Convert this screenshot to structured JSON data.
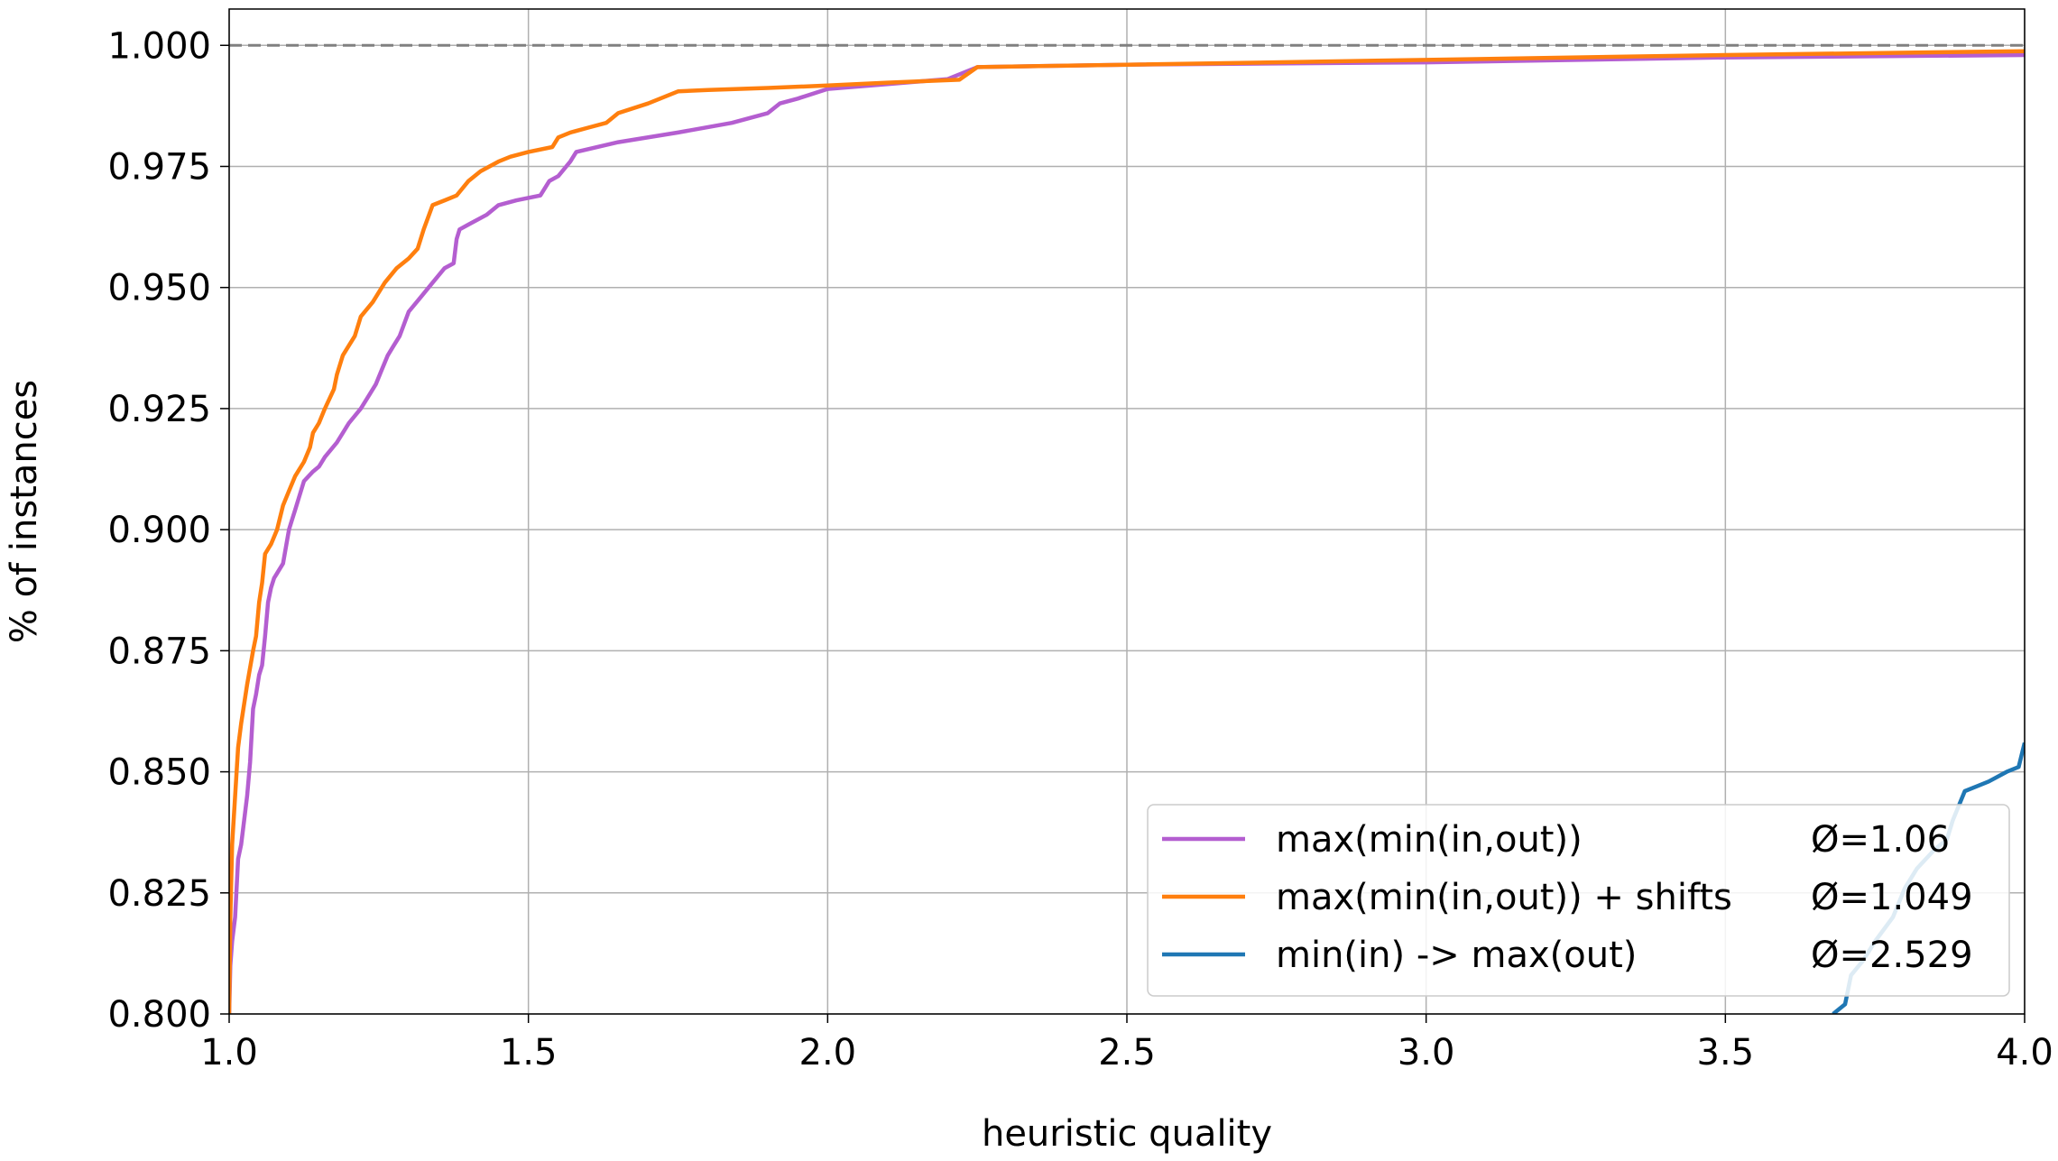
{
  "chart_data": {
    "type": "line",
    "title": "",
    "xlabel": "heuristic quality",
    "ylabel": "% of instances",
    "xlim": [
      1.0,
      4.0
    ],
    "ylim": [
      0.8,
      1.0075
    ],
    "xticks": [
      "1.0",
      "1.5",
      "2.0",
      "2.5",
      "3.0",
      "3.5",
      "4.0"
    ],
    "yticks": [
      "0.800",
      "0.825",
      "0.850",
      "0.875",
      "0.900",
      "0.925",
      "0.950",
      "0.975",
      "1.000"
    ],
    "grid": true,
    "legend_position": "lower-right",
    "reference_line": {
      "y": 1.0,
      "style": "dashed",
      "color": "#808080"
    },
    "series": [
      {
        "name": "max(min(in,out))",
        "avg_label": "Ø=1.06",
        "color": "#b45ed0",
        "x": [
          1.0,
          1.002,
          1.005,
          1.01,
          1.015,
          1.02,
          1.025,
          1.03,
          1.035,
          1.04,
          1.045,
          1.05,
          1.055,
          1.06,
          1.065,
          1.07,
          1.075,
          1.08,
          1.09,
          1.1,
          1.105,
          1.11,
          1.115,
          1.125,
          1.14,
          1.15,
          1.16,
          1.18,
          1.2,
          1.22,
          1.235,
          1.245,
          1.255,
          1.265,
          1.275,
          1.285,
          1.3,
          1.32,
          1.34,
          1.36,
          1.375,
          1.38,
          1.385,
          1.4,
          1.43,
          1.45,
          1.48,
          1.52,
          1.535,
          1.55,
          1.57,
          1.58,
          1.65,
          1.75,
          1.84,
          1.9,
          1.92,
          1.95,
          2.0,
          2.1,
          2.2,
          2.25,
          2.5,
          3.0,
          3.5,
          4.0
        ],
        "y": [
          0.8,
          0.81,
          0.815,
          0.82,
          0.832,
          0.835,
          0.84,
          0.845,
          0.852,
          0.863,
          0.866,
          0.87,
          0.872,
          0.878,
          0.885,
          0.888,
          0.89,
          0.891,
          0.893,
          0.9,
          0.902,
          0.904,
          0.906,
          0.91,
          0.912,
          0.913,
          0.915,
          0.918,
          0.922,
          0.925,
          0.928,
          0.93,
          0.933,
          0.936,
          0.938,
          0.94,
          0.945,
          0.948,
          0.951,
          0.954,
          0.955,
          0.96,
          0.962,
          0.963,
          0.965,
          0.967,
          0.968,
          0.969,
          0.972,
          0.973,
          0.976,
          0.978,
          0.98,
          0.982,
          0.984,
          0.986,
          0.988,
          0.989,
          0.991,
          0.992,
          0.993,
          0.9955,
          0.996,
          0.9965,
          0.9975,
          0.998
        ]
      },
      {
        "name": "max(min(in,out)) + shifts",
        "avg_label": "Ø=1.049",
        "color": "#ff7f0e",
        "x": [
          1.0,
          1.002,
          1.005,
          1.01,
          1.015,
          1.02,
          1.03,
          1.04,
          1.045,
          1.05,
          1.055,
          1.06,
          1.07,
          1.08,
          1.09,
          1.1,
          1.11,
          1.115,
          1.125,
          1.135,
          1.14,
          1.15,
          1.16,
          1.175,
          1.18,
          1.19,
          1.2,
          1.21,
          1.22,
          1.24,
          1.26,
          1.28,
          1.3,
          1.315,
          1.325,
          1.34,
          1.36,
          1.38,
          1.4,
          1.42,
          1.45,
          1.47,
          1.5,
          1.54,
          1.55,
          1.57,
          1.6,
          1.63,
          1.65,
          1.7,
          1.75,
          1.8,
          1.9,
          2.0,
          2.1,
          2.22,
          2.25,
          2.5,
          3.0,
          3.5,
          4.0
        ],
        "y": [
          0.8,
          0.82,
          0.835,
          0.845,
          0.855,
          0.86,
          0.868,
          0.875,
          0.878,
          0.885,
          0.889,
          0.895,
          0.897,
          0.9,
          0.905,
          0.908,
          0.911,
          0.912,
          0.914,
          0.917,
          0.92,
          0.922,
          0.925,
          0.929,
          0.932,
          0.936,
          0.938,
          0.94,
          0.944,
          0.947,
          0.951,
          0.954,
          0.956,
          0.958,
          0.962,
          0.967,
          0.968,
          0.969,
          0.972,
          0.974,
          0.976,
          0.977,
          0.978,
          0.979,
          0.981,
          0.982,
          0.983,
          0.984,
          0.986,
          0.988,
          0.9905,
          0.9908,
          0.9912,
          0.9917,
          0.9923,
          0.9929,
          0.9955,
          0.996,
          0.997,
          0.998,
          0.9988
        ]
      },
      {
        "name": "min(in) -> max(out)",
        "avg_label": "Ø=2.529",
        "color": "#1f77b4",
        "x": [
          3.68,
          3.7,
          3.71,
          3.73,
          3.75,
          3.78,
          3.8,
          3.82,
          3.85,
          3.87,
          3.88,
          3.9,
          3.92,
          3.94,
          3.97,
          3.99,
          4.0
        ],
        "y": [
          0.8,
          0.802,
          0.808,
          0.811,
          0.815,
          0.82,
          0.826,
          0.83,
          0.834,
          0.836,
          0.84,
          0.846,
          0.847,
          0.848,
          0.85,
          0.851,
          0.856
        ]
      }
    ]
  }
}
